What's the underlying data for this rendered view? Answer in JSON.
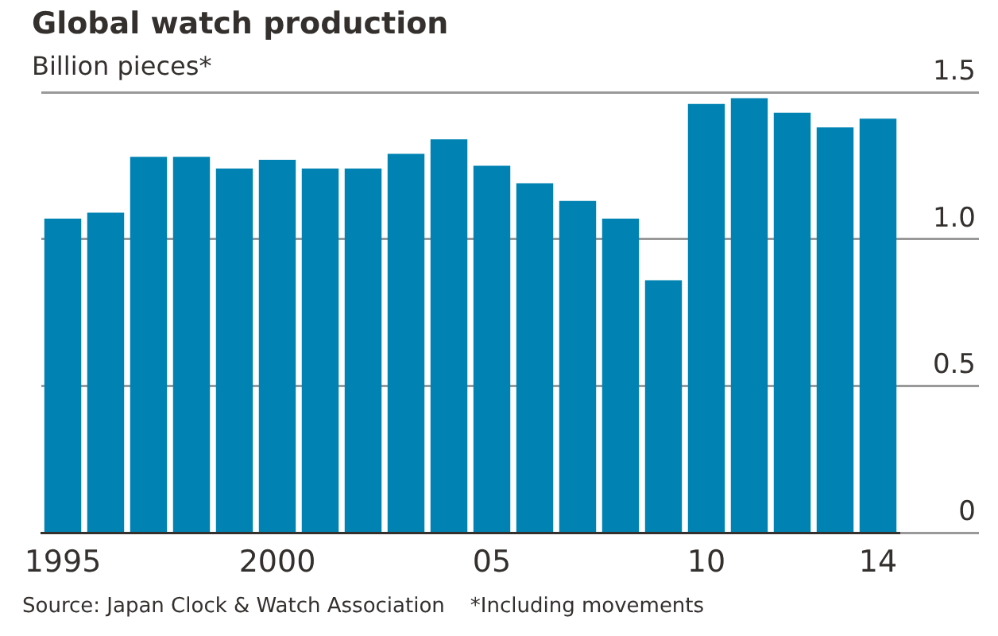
{
  "chart_data": {
    "type": "bar",
    "title": "Global watch production",
    "ylabel": "Billion pieces*",
    "categories": [
      "1995",
      null,
      null,
      null,
      null,
      "2000",
      null,
      null,
      null,
      null,
      "05",
      null,
      null,
      null,
      null,
      "10",
      null,
      null,
      null,
      "14"
    ],
    "values": [
      1.07,
      1.09,
      1.28,
      1.28,
      1.24,
      1.27,
      1.24,
      1.24,
      1.29,
      1.34,
      1.25,
      1.19,
      1.13,
      1.07,
      0.86,
      1.46,
      1.48,
      1.43,
      1.38,
      1.41
    ],
    "color": "#0083b3",
    "ylim": [
      0,
      1.5
    ],
    "yticks": [
      0,
      0.5,
      {
        "value": 1,
        "label": "1.0"
      },
      1.5
    ],
    "grid": "y",
    "annotations": [
      "Source: Japan Clock & Watch Association",
      "*Including movements"
    ]
  }
}
